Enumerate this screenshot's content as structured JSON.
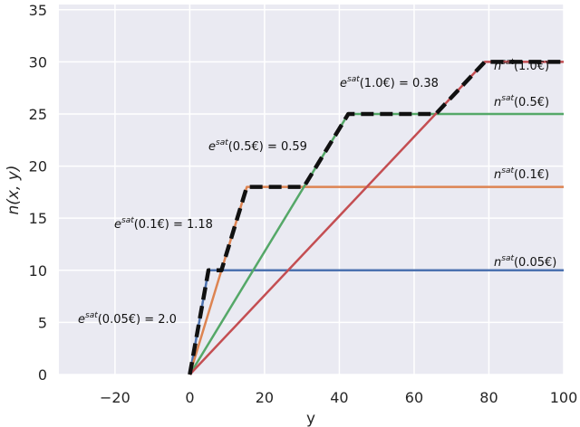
{
  "chart_data": {
    "type": "line",
    "xlabel": "y",
    "ylabel": "n(x, y)",
    "xlim": [
      -35,
      100
    ],
    "ylim": [
      0,
      35.5
    ],
    "xticks": [
      -20,
      0,
      20,
      40,
      60,
      80,
      100
    ],
    "xtick_labels": [
      "−20",
      "0",
      "20",
      "40",
      "60",
      "80",
      "100"
    ],
    "yticks": [
      0,
      5,
      10,
      15,
      20,
      25,
      30,
      35
    ],
    "ytick_labels": [
      "0",
      "5",
      "10",
      "15",
      "20",
      "25",
      "30",
      "35"
    ],
    "grid": true,
    "background": "#eaeaf2",
    "series": [
      {
        "color": "#4c72b0",
        "style": "solid",
        "x": [
          0,
          5,
          100
        ],
        "y": [
          0,
          10,
          10
        ]
      },
      {
        "color": "#dd8452",
        "style": "solid",
        "x": [
          0,
          15.25,
          100
        ],
        "y": [
          0,
          18,
          18
        ]
      },
      {
        "color": "#55a868",
        "style": "solid",
        "x": [
          0,
          42.4,
          100
        ],
        "y": [
          0,
          25,
          25
        ]
      },
      {
        "color": "#c44e52",
        "style": "solid",
        "x": [
          0,
          78.9,
          100
        ],
        "y": [
          0,
          30,
          30
        ]
      },
      {
        "color": "#111111",
        "style": "dashed",
        "x": [
          0,
          5,
          8.47,
          15.25,
          30.5,
          42.4,
          65.8,
          78.9,
          100
        ],
        "y": [
          0,
          10,
          10,
          18,
          18,
          25,
          25,
          30,
          30
        ]
      }
    ],
    "annotations": [
      {
        "base": "e",
        "sup": "sat",
        "rest": "(0.05€) = 2.0"
      },
      {
        "base": "e",
        "sup": "sat",
        "rest": "(0.1€) = 1.18"
      },
      {
        "base": "e",
        "sup": "sat",
        "rest": "(0.5€) = 0.59"
      },
      {
        "base": "e",
        "sup": "sat",
        "rest": "(1.0€) = 0.38"
      },
      {
        "base": "n",
        "sup": "sat",
        "rest": "(1.0€)"
      },
      {
        "base": "n",
        "sup": "sat",
        "rest": "(0.5€)"
      },
      {
        "base": "n",
        "sup": "sat",
        "rest": "(0.1€)"
      },
      {
        "base": "n",
        "sup": "sat",
        "rest": "(0.05€)"
      }
    ]
  }
}
